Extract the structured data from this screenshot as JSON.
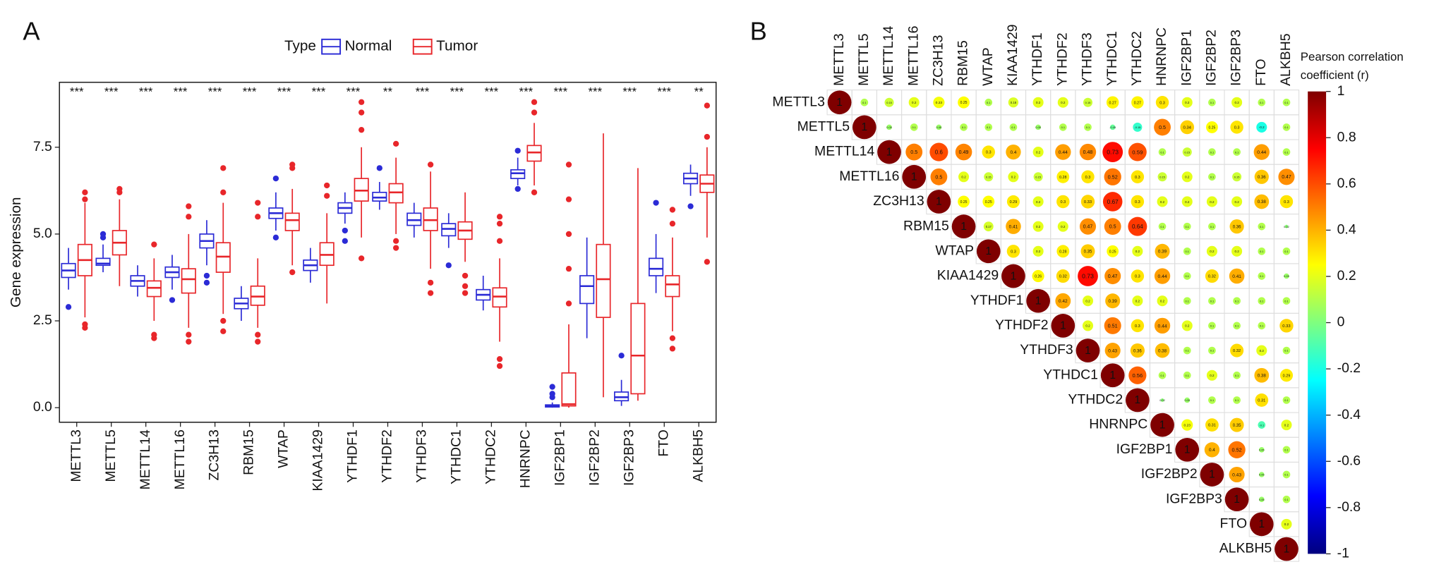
{
  "chart_data": [
    {
      "type": "box",
      "panel": "A",
      "legend_title": "Type",
      "ylabel": "Gene expression",
      "categories": [
        "METTL3",
        "METTL5",
        "METTL14",
        "METTL16",
        "ZC3H13",
        "RBM15",
        "WTAP",
        "KIAA1429",
        "YTHDF1",
        "YTHDF2",
        "YTHDF3",
        "YTHDC1",
        "YTHDC2",
        "HNRNPC",
        "IGF2BP1",
        "IGF2BP2",
        "IGF2BP3",
        "FTO",
        "ALKBH5"
      ],
      "significance": [
        "***",
        "***",
        "***",
        "***",
        "***",
        "***",
        "***",
        "***",
        "***",
        "**",
        "***",
        "***",
        "***",
        "***",
        "***",
        "***",
        "***",
        "***",
        "**"
      ],
      "ylim": [
        -0.42,
        9.37
      ],
      "yticks": [
        {
          "value": 0,
          "label": "0.0"
        },
        2.5,
        {
          "value": 5,
          "label": "5.0"
        },
        7.5
      ],
      "series": [
        {
          "name": "Normal",
          "color": "#2b2bd6",
          "boxes": [
            [
              3.4,
              3.75,
              3.95,
              4.15,
              4.6
            ],
            [
              3.9,
              4.1,
              4.15,
              4.3,
              4.7
            ],
            [
              3.2,
              3.5,
              3.65,
              3.8,
              4.1
            ],
            [
              3.4,
              3.75,
              3.9,
              4.05,
              4.4
            ],
            [
              4.1,
              4.6,
              4.8,
              5.0,
              5.4
            ],
            [
              2.5,
              2.85,
              3.0,
              3.15,
              3.5
            ],
            [
              5.1,
              5.45,
              5.6,
              5.75,
              6.2
            ],
            [
              3.6,
              3.95,
              4.1,
              4.25,
              4.6
            ],
            [
              5.3,
              5.6,
              5.75,
              5.9,
              6.2
            ],
            [
              5.7,
              5.95,
              6.05,
              6.2,
              6.5
            ],
            [
              4.9,
              5.25,
              5.4,
              5.6,
              5.9
            ],
            [
              4.6,
              4.95,
              5.15,
              5.3,
              5.6
            ],
            [
              2.8,
              3.1,
              3.25,
              3.4,
              3.8
            ],
            [
              6.4,
              6.6,
              6.75,
              6.85,
              7.2
            ],
            [
              0,
              0.02,
              0.05,
              0.08,
              0.15
            ],
            [
              2.0,
              3.0,
              3.5,
              3.8,
              4.9
            ],
            [
              0.05,
              0.2,
              0.3,
              0.45,
              0.8
            ],
            [
              3.3,
              3.8,
              4.0,
              4.3,
              5.0
            ],
            [
              6.1,
              6.45,
              6.6,
              6.75,
              7.0
            ]
          ],
          "outliers": [
            [
              2.9
            ],
            [
              5.0,
              4.9
            ],
            [],
            [
              3.1
            ],
            [
              3.6,
              3.8
            ],
            [],
            [
              6.6,
              4.9
            ],
            [],
            [
              5.1,
              4.8
            ],
            [
              6.9
            ],
            [],
            [
              4.1
            ],
            [],
            [
              7.4,
              6.3
            ],
            [
              0.3,
              0.4,
              0.6
            ],
            [],
            [
              1.5
            ],
            [
              5.9
            ],
            [
              5.8
            ]
          ]
        },
        {
          "name": "Tumor",
          "color": "#e8262a",
          "boxes": [
            [
              2.6,
              3.8,
              4.25,
              4.7,
              5.9
            ],
            [
              3.5,
              4.4,
              4.75,
              5.1,
              6.0
            ],
            [
              2.5,
              3.2,
              3.45,
              3.65,
              4.3
            ],
            [
              2.3,
              3.3,
              3.7,
              4.0,
              5.0
            ],
            [
              2.7,
              3.9,
              4.35,
              4.75,
              5.9
            ],
            [
              2.3,
              2.95,
              3.2,
              3.5,
              4.3
            ],
            [
              4.1,
              5.1,
              5.4,
              5.6,
              6.3
            ],
            [
              3.0,
              4.1,
              4.4,
              4.75,
              5.6
            ],
            [
              4.9,
              5.95,
              6.25,
              6.6,
              7.5
            ],
            [
              5.0,
              5.9,
              6.2,
              6.45,
              7.2
            ],
            [
              4.0,
              5.1,
              5.4,
              5.75,
              6.8
            ],
            [
              4.2,
              4.85,
              5.1,
              5.35,
              6.2
            ],
            [
              1.9,
              2.9,
              3.2,
              3.45,
              4.3
            ],
            [
              6.4,
              7.1,
              7.35,
              7.55,
              8.2
            ],
            [
              0,
              0.05,
              0.1,
              1.0,
              2.4
            ],
            [
              0.3,
              2.6,
              3.7,
              4.7,
              7.9
            ],
            [
              0.2,
              0.4,
              1.5,
              3.0,
              6.9
            ],
            [
              2.2,
              3.2,
              3.55,
              3.8,
              4.9
            ],
            [
              4.9,
              6.2,
              6.45,
              6.7,
              7.5
            ]
          ],
          "outliers": [
            [
              2.3,
              2.4,
              6.0,
              6.2
            ],
            [
              6.2,
              6.3
            ],
            [
              2.1,
              2.0,
              4.7
            ],
            [
              1.9,
              2.1,
              5.5,
              5.8
            ],
            [
              2.2,
              2.5,
              6.2,
              6.9
            ],
            [
              1.9,
              2.1,
              5.5,
              5.9
            ],
            [
              3.9,
              6.9,
              7.0
            ],
            [
              6.1,
              6.4
            ],
            [
              4.3,
              8.0,
              8.5,
              8.8
            ],
            [
              4.6,
              4.8,
              7.6
            ],
            [
              3.3,
              3.6,
              7.0
            ],
            [
              3.3,
              3.5,
              3.8
            ],
            [
              1.2,
              1.4,
              4.8,
              5.3,
              5.5
            ],
            [
              6.2,
              8.5,
              8.8
            ],
            [
              3.0,
              4.0,
              5.0,
              6.0,
              7.0
            ],
            [],
            [],
            [
              1.7,
              2.0,
              5.3,
              5.7
            ],
            [
              4.2,
              7.8,
              8.7
            ]
          ]
        }
      ]
    },
    {
      "type": "correlation",
      "panel": "B",
      "legend_title": [
        "Pearson correlation",
        "coefficient (r)"
      ],
      "labels": [
        "METTL3",
        "METTL5",
        "METTL14",
        "METTL16",
        "ZC3H13",
        "RBM15",
        "WTAP",
        "KIAA1429",
        "YTHDF1",
        "YTHDF2",
        "YTHDF3",
        "YTHDC1",
        "YTHDC2",
        "HNRNPC",
        "IGF2BP1",
        "IGF2BP2",
        "IGF2BP3",
        "FTO",
        "ALKBH5"
      ],
      "matrix": [
        [
          1,
          0.1,
          0.15,
          0.2,
          0.23,
          0.25,
          0.1,
          0.18,
          0.2,
          0.2,
          0.15,
          0.27,
          0.27,
          0.3,
          0.2,
          0.1,
          0.2,
          0.1,
          0.1
        ],
        [
          1,
          0.05,
          0.1,
          0.05,
          0.1,
          0.1,
          0.1,
          0.05,
          0.1,
          0.1,
          -0.05,
          -0.15,
          0.5,
          0.34,
          0.25,
          0.3,
          -0.2,
          0.1
        ],
        [
          1,
          0.5,
          0.6,
          0.49,
          0.3,
          0.4,
          0.2,
          0.44,
          0.48,
          0.73,
          0.59,
          0.1,
          0.15,
          0.1,
          0.1,
          0.44,
          0.1
        ],
        [
          1,
          0.5,
          0.2,
          0.15,
          0.2,
          0.15,
          0.28,
          0.3,
          0.52,
          0.3,
          0.15,
          0.2,
          0.1,
          0.15,
          0.36,
          0.47
        ],
        [
          1,
          0.25,
          0.25,
          0.29,
          0.2,
          0.3,
          0.33,
          0.67,
          0.3,
          0.2,
          0.2,
          0.2,
          0.2,
          0.38,
          0.3
        ],
        [
          1,
          0.17,
          0.41,
          0.2,
          0.2,
          0.47,
          0.5,
          0.64,
          0.1,
          0.1,
          0.1,
          0.36,
          0.1,
          0.02
        ],
        [
          1,
          0.3,
          0.2,
          0.28,
          0.35,
          0.25,
          0.2,
          0.39,
          0.1,
          0.2,
          0.2,
          0.1,
          0.1
        ],
        [
          1,
          0.26,
          0.32,
          0.73,
          0.47,
          0.3,
          0.44,
          0.1,
          0.32,
          0.41,
          0.1,
          0.05
        ],
        [
          1,
          0.42,
          0.2,
          0.39,
          0.2,
          0.2,
          0.1,
          0.1,
          0.1,
          0.1,
          0.1
        ],
        [
          1,
          0.2,
          0.51,
          0.3,
          0.44,
          0.2,
          0.1,
          0.1,
          0.1,
          0.33
        ],
        [
          1,
          0.43,
          0.36,
          0.38,
          0.1,
          0.1,
          0.32,
          0.2,
          0.1
        ],
        [
          1,
          0.56,
          0.1,
          0.1,
          0.2,
          0.1,
          0.38,
          0.29
        ],
        [
          1,
          0.02,
          0.05,
          0.1,
          0.1,
          0.31,
          0.1
        ],
        [
          1,
          0.23,
          0.31,
          0.35,
          -0.1,
          0.2
        ],
        [
          1,
          0.4,
          0.52,
          0.05,
          0.1
        ],
        [
          1,
          0.43,
          0.05,
          0.1
        ],
        [
          1,
          0.05,
          0.1
        ],
        [
          1,
          0.2
        ],
        [
          1
        ]
      ],
      "clim": [
        -1,
        1
      ],
      "cticks": [
        1,
        0.8,
        0.6,
        0.4,
        0.2,
        0,
        -0.2,
        -0.4,
        -0.6,
        -0.8,
        -1
      ],
      "colors": [
        "#00007f",
        "#0000ff",
        "#007fff",
        "#00ffff",
        "#7fff7f",
        "#ffff00",
        "#ff7f00",
        "#ff0000",
        "#7f0000"
      ]
    }
  ]
}
